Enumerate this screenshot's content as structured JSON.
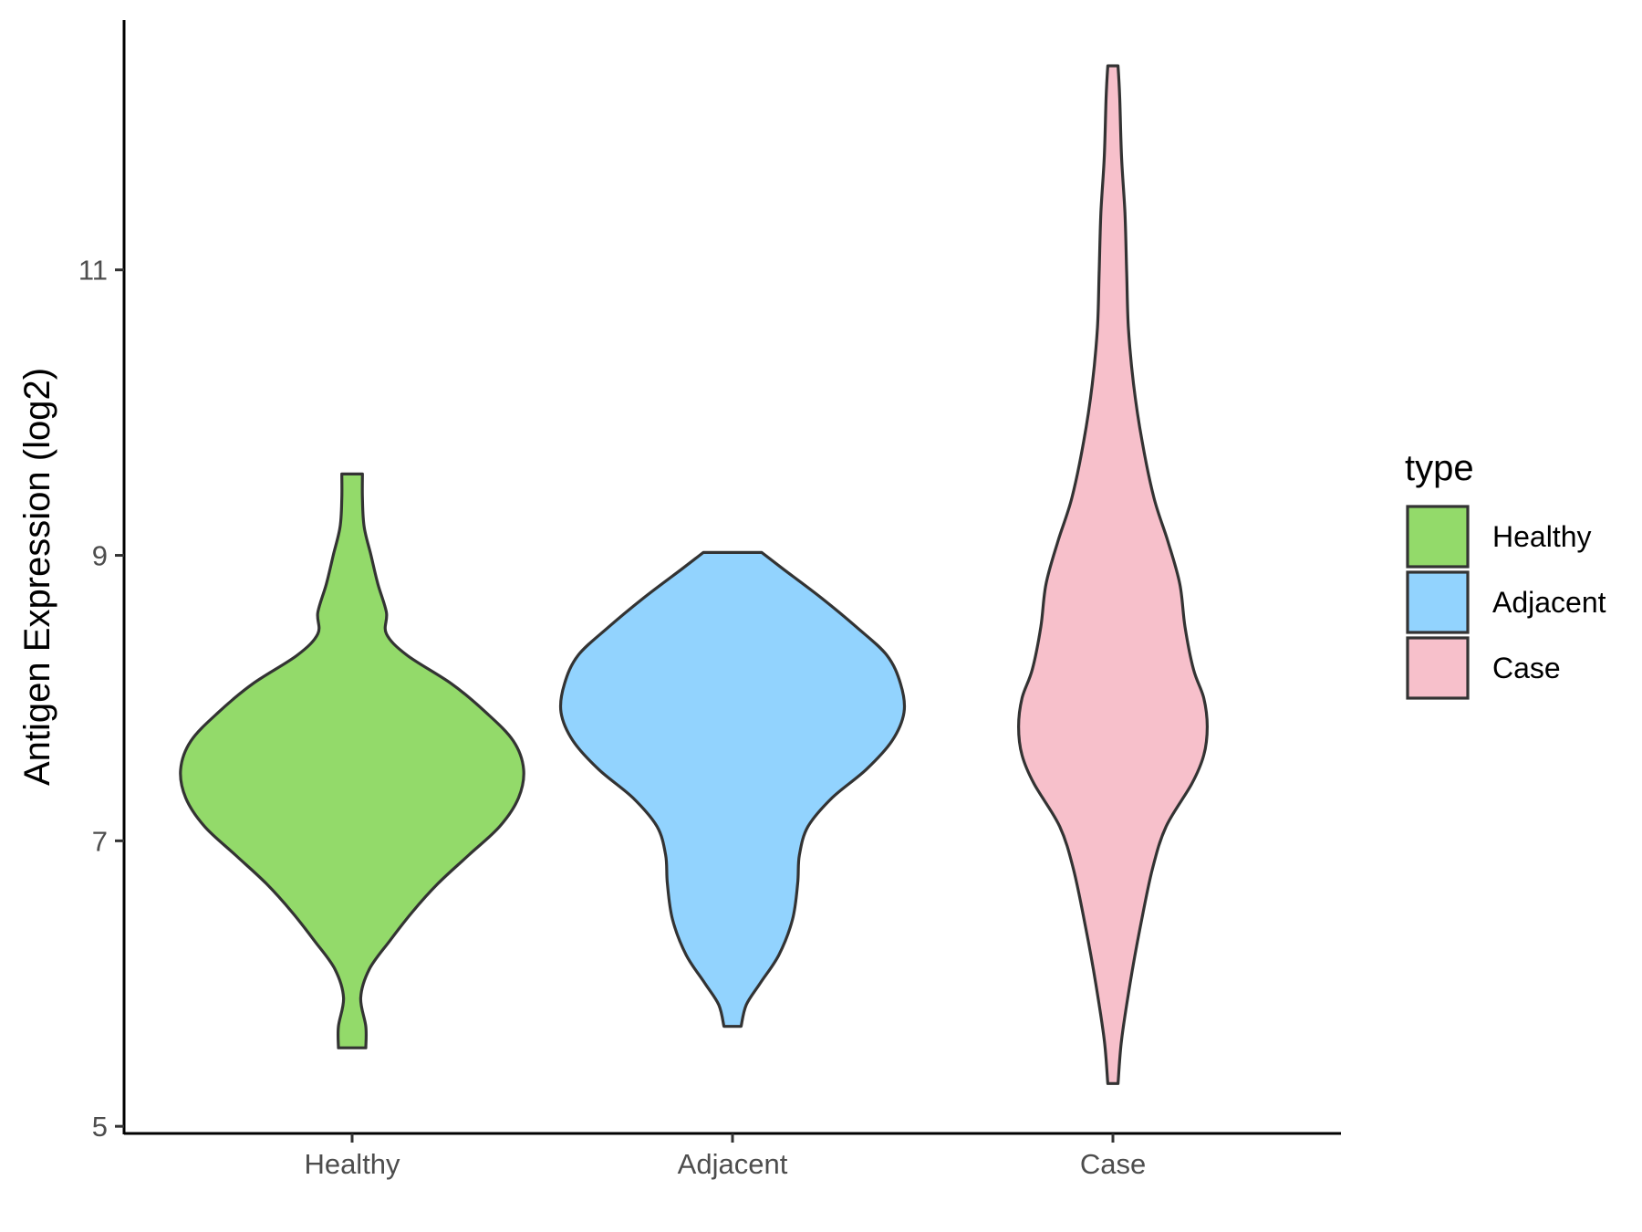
{
  "chart_data": {
    "type": "violin",
    "xlabel": "",
    "ylabel": "Antigen Expression (log2)",
    "ylim": [
      4.95,
      12.75
    ],
    "yticks": [
      5,
      7,
      9,
      11
    ],
    "categories": [
      "Healthy",
      "Adjacent",
      "Case"
    ],
    "grid": false,
    "legend": {
      "title": "type",
      "position": "right",
      "entries": [
        "Healthy",
        "Adjacent",
        "Case"
      ]
    },
    "series": [
      {
        "category": "Healthy",
        "color": "#93DA6A",
        "min": 5.55,
        "max": 9.57,
        "profile": [
          [
            5.55,
            0.08
          ],
          [
            5.7,
            0.08
          ],
          [
            5.9,
            0.05
          ],
          [
            6.1,
            0.1
          ],
          [
            6.3,
            0.22
          ],
          [
            6.5,
            0.35
          ],
          [
            6.7,
            0.5
          ],
          [
            6.9,
            0.68
          ],
          [
            7.1,
            0.86
          ],
          [
            7.3,
            0.97
          ],
          [
            7.5,
            1.0
          ],
          [
            7.7,
            0.94
          ],
          [
            7.9,
            0.78
          ],
          [
            8.1,
            0.58
          ],
          [
            8.3,
            0.32
          ],
          [
            8.45,
            0.2
          ],
          [
            8.6,
            0.2
          ],
          [
            8.8,
            0.15
          ],
          [
            9.0,
            0.11
          ],
          [
            9.2,
            0.07
          ],
          [
            9.4,
            0.06
          ],
          [
            9.57,
            0.06
          ]
        ]
      },
      {
        "category": "Adjacent",
        "color": "#92D3FE",
        "min": 5.7,
        "max": 9.02,
        "profile": [
          [
            5.7,
            0.05
          ],
          [
            5.85,
            0.08
          ],
          [
            6.0,
            0.16
          ],
          [
            6.2,
            0.27
          ],
          [
            6.45,
            0.35
          ],
          [
            6.7,
            0.38
          ],
          [
            6.9,
            0.39
          ],
          [
            7.1,
            0.44
          ],
          [
            7.3,
            0.58
          ],
          [
            7.5,
            0.78
          ],
          [
            7.7,
            0.93
          ],
          [
            7.9,
            1.0
          ],
          [
            8.1,
            0.98
          ],
          [
            8.3,
            0.9
          ],
          [
            8.5,
            0.72
          ],
          [
            8.7,
            0.52
          ],
          [
            8.9,
            0.3
          ],
          [
            9.02,
            0.17
          ]
        ]
      },
      {
        "category": "Case",
        "color": "#F7C0CB",
        "min": 5.3,
        "max": 12.43,
        "profile": [
          [
            5.3,
            0.03
          ],
          [
            5.6,
            0.05
          ],
          [
            6.0,
            0.1
          ],
          [
            6.4,
            0.16
          ],
          [
            6.8,
            0.23
          ],
          [
            7.1,
            0.31
          ],
          [
            7.4,
            0.46
          ],
          [
            7.6,
            0.53
          ],
          [
            7.8,
            0.55
          ],
          [
            8.0,
            0.53
          ],
          [
            8.2,
            0.47
          ],
          [
            8.5,
            0.42
          ],
          [
            8.8,
            0.39
          ],
          [
            9.1,
            0.32
          ],
          [
            9.4,
            0.24
          ],
          [
            9.8,
            0.17
          ],
          [
            10.2,
            0.12
          ],
          [
            10.6,
            0.09
          ],
          [
            11.0,
            0.08
          ],
          [
            11.4,
            0.07
          ],
          [
            11.8,
            0.05
          ],
          [
            12.2,
            0.04
          ],
          [
            12.43,
            0.03
          ]
        ]
      }
    ]
  }
}
